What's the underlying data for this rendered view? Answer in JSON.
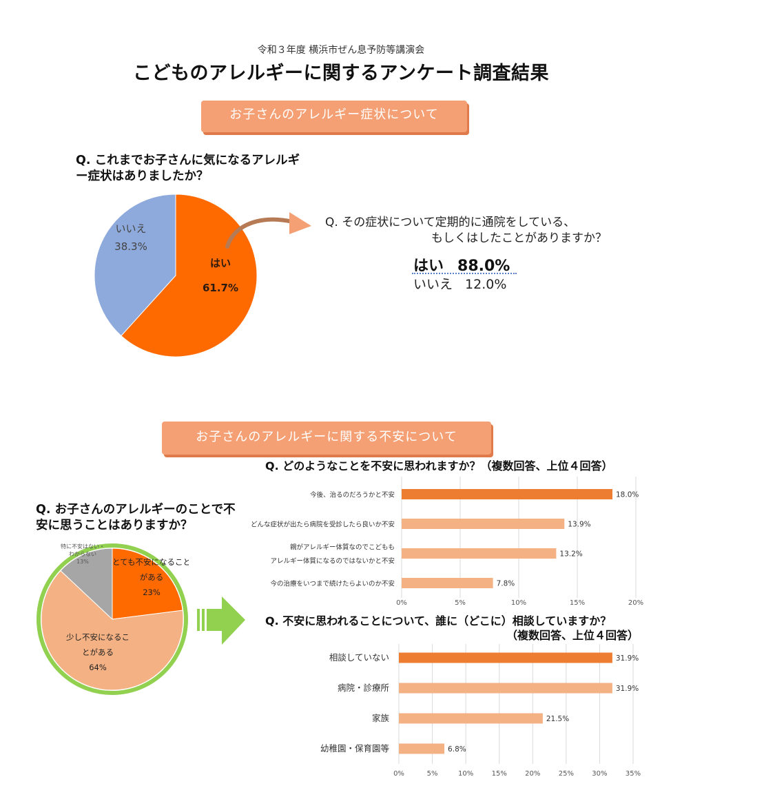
{
  "header": {
    "subtitle": "令和３年度 横浜市ぜん息予防等講演会",
    "title": "こどものアレルギーに関するアンケート調査結果"
  },
  "section1": {
    "banner": "お子さんのアレルギー症状について",
    "question": "Q. これまでお子さんに気になるアレルギー症状はありましたか？",
    "followup_question_line1": "Q. その症状について定期的に通院をしている、",
    "followup_question_line2": "もしくはしたことがありますか？",
    "followup_yes_label": "はい",
    "followup_yes_value": "88.0%",
    "followup_no_label": "いいえ",
    "followup_no_value": "12.0%"
  },
  "section2": {
    "banner": "お子さんのアレルギーに関する不安について",
    "question_pie": "Q. お子さんのアレルギーのことで不安に思うことはありますか？",
    "question_bar1": "Q. どのようなことを不安に思われますか？（複数回答、上位４回答）",
    "question_bar2_line1": "Q. 不安に思われることについて、誰に（どこに）相談していますか？",
    "question_bar2_line2": "（複数回答、上位４回答）"
  },
  "colors": {
    "orange": "#ff6a00",
    "blue": "#8ea9db",
    "salmon": "#f4b183",
    "dark_orange_bar": "#ed7d31",
    "gray": "#a6a6a6",
    "green": "#92d050",
    "banner": "#f4a074"
  },
  "chart_data": [
    {
      "type": "pie",
      "slices": [
        {
          "label": "はい",
          "value": 61.7,
          "display": "61.7%",
          "color": "#ff6a00"
        },
        {
          "label": "いいえ",
          "value": 38.3,
          "display": "38.3%",
          "color": "#8ea9db"
        }
      ]
    },
    {
      "type": "pie",
      "slices": [
        {
          "label": "とても不安になること\nがある",
          "value": 23,
          "display": "23%",
          "color": "#ff6a00"
        },
        {
          "label": "少し不安になるこ\nとがある",
          "value": 64,
          "display": "64%",
          "color": "#f4b183"
        },
        {
          "label": "特に不安はない・\nわからない",
          "value": 13,
          "display": "13%",
          "color": "#a6a6a6"
        }
      ]
    },
    {
      "type": "bar",
      "orientation": "horizontal",
      "categories": [
        "今後、治るのだろうかと不安",
        "どんな症状が出たら病院を受診したら良いか不安",
        "親がアレルギー体質なのでこどもも\nアレルギー体質になるのではないかと不安",
        "今の治療をいつまで続けたらよいのか不安"
      ],
      "values": [
        18.0,
        13.9,
        13.2,
        7.8
      ],
      "value_labels": [
        "18.0%",
        "13.9%",
        "13.2%",
        "7.8%"
      ],
      "xlim": [
        0,
        20
      ],
      "xticks": [
        "0%",
        "5%",
        "10%",
        "15%",
        "20%"
      ],
      "xtick_values": [
        0,
        5,
        10,
        15,
        20
      ],
      "grid": true
    },
    {
      "type": "bar",
      "orientation": "horizontal",
      "categories": [
        "相談していない",
        "病院・診療所",
        "家族",
        "幼稚園・保育園等"
      ],
      "values": [
        31.9,
        31.9,
        21.5,
        6.8
      ],
      "value_labels": [
        "31.9%",
        "31.9%",
        "21.5%",
        "6.8%"
      ],
      "xlim": [
        0,
        35
      ],
      "xticks": [
        "0%",
        "5%",
        "10%",
        "15%",
        "20%",
        "25%",
        "30%",
        "35%"
      ],
      "xtick_values": [
        0,
        5,
        10,
        15,
        20,
        25,
        30,
        35
      ],
      "grid": true
    }
  ]
}
